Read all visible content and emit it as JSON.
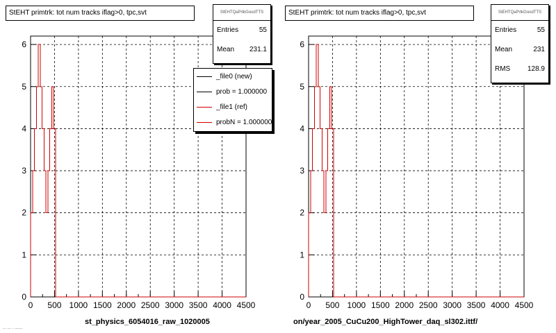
{
  "colors": {
    "new": "#000000",
    "ref": "#cc0000",
    "grid": "#000000"
  },
  "left": {
    "title": "StEHT primtrk: tot num tracks iflag>0, tpc,svt",
    "stats": {
      "name": "StEHTQaPrtkGoodTTS",
      "rows": [
        {
          "label": "Entries",
          "value": "55"
        },
        {
          "label": "Mean",
          "value": "231.1"
        }
      ]
    },
    "legend": [
      {
        "label": "_file0 (new)",
        "color": "#000000"
      },
      {
        "label": "prob = 1.000000",
        "color": "#000000"
      },
      {
        "label": "_file1 (ref)",
        "color": "#cc0000"
      },
      {
        "label": "probN = 1.000000",
        "color": "#cc0000"
      }
    ],
    "xtitle": "st_physics_6054016_raw_1020005",
    "corner": "... ... . ......."
  },
  "right": {
    "title": "StEHT primtrk: tot num tracks iflag>0, tpc,svt",
    "stats": {
      "name": "StEHTQaPrtkGoodTTS",
      "rows": [
        {
          "label": "Entries",
          "value": "55"
        },
        {
          "label": "Mean",
          "value": "231"
        },
        {
          "label": "RMS",
          "value": "128.9"
        }
      ]
    },
    "xtitle": "on/year_2005_CuCu200_HighTower_daq_sl302.ittf/"
  },
  "chart_data": [
    {
      "type": "line",
      "title": "StEHT primtrk: tot num tracks iflag>0, tpc,svt",
      "xlabel": "st_physics_6054016_raw_1020005",
      "ylabel": "",
      "xlim": [
        0,
        4500
      ],
      "ylim": [
        0,
        6.2
      ],
      "xticks": [
        0,
        500,
        1000,
        1500,
        2000,
        2500,
        3000,
        3500,
        4000,
        4500
      ],
      "yticks": [
        0,
        1,
        2,
        3,
        4,
        5,
        6
      ],
      "grid": true,
      "legend_position": "top-right",
      "series": [
        {
          "name": "_file0 (new)",
          "x": [
            0,
            40,
            80,
            120,
            160,
            200,
            240,
            280,
            320,
            360,
            400,
            440,
            480,
            520,
            560,
            4500
          ],
          "y": [
            2,
            3,
            4,
            5,
            6,
            5,
            4,
            3,
            2,
            3,
            4,
            5,
            4,
            0,
            0,
            0
          ]
        },
        {
          "name": "_file1 (ref)",
          "x": [
            0,
            40,
            80,
            120,
            160,
            200,
            240,
            280,
            320,
            360,
            400,
            440,
            480,
            520,
            560,
            4500
          ],
          "y": [
            2,
            3,
            4,
            5,
            6,
            5,
            4,
            3,
            2,
            3,
            4,
            5,
            4,
            0,
            0,
            0
          ]
        }
      ]
    },
    {
      "type": "line",
      "title": "StEHT primtrk: tot num tracks iflag>0, tpc,svt",
      "xlabel": "on/year_2005_CuCu200_HighTower_daq_sl302.ittf/",
      "ylabel": "",
      "xlim": [
        0,
        4500
      ],
      "ylim": [
        0,
        6.2
      ],
      "xticks": [
        0,
        500,
        1000,
        1500,
        2000,
        2500,
        3000,
        3500,
        4000,
        4500
      ],
      "yticks": [
        0,
        1,
        2,
        3,
        4,
        5,
        6
      ],
      "grid": true,
      "series": [
        {
          "x": [
            0,
            40,
            80,
            120,
            160,
            200,
            240,
            280,
            320,
            360,
            400,
            440,
            480,
            520,
            560,
            4500
          ],
          "y": [
            2,
            3,
            4,
            5,
            6,
            5,
            4,
            3,
            2,
            3,
            4,
            5,
            4,
            0,
            0,
            0
          ]
        }
      ]
    }
  ]
}
